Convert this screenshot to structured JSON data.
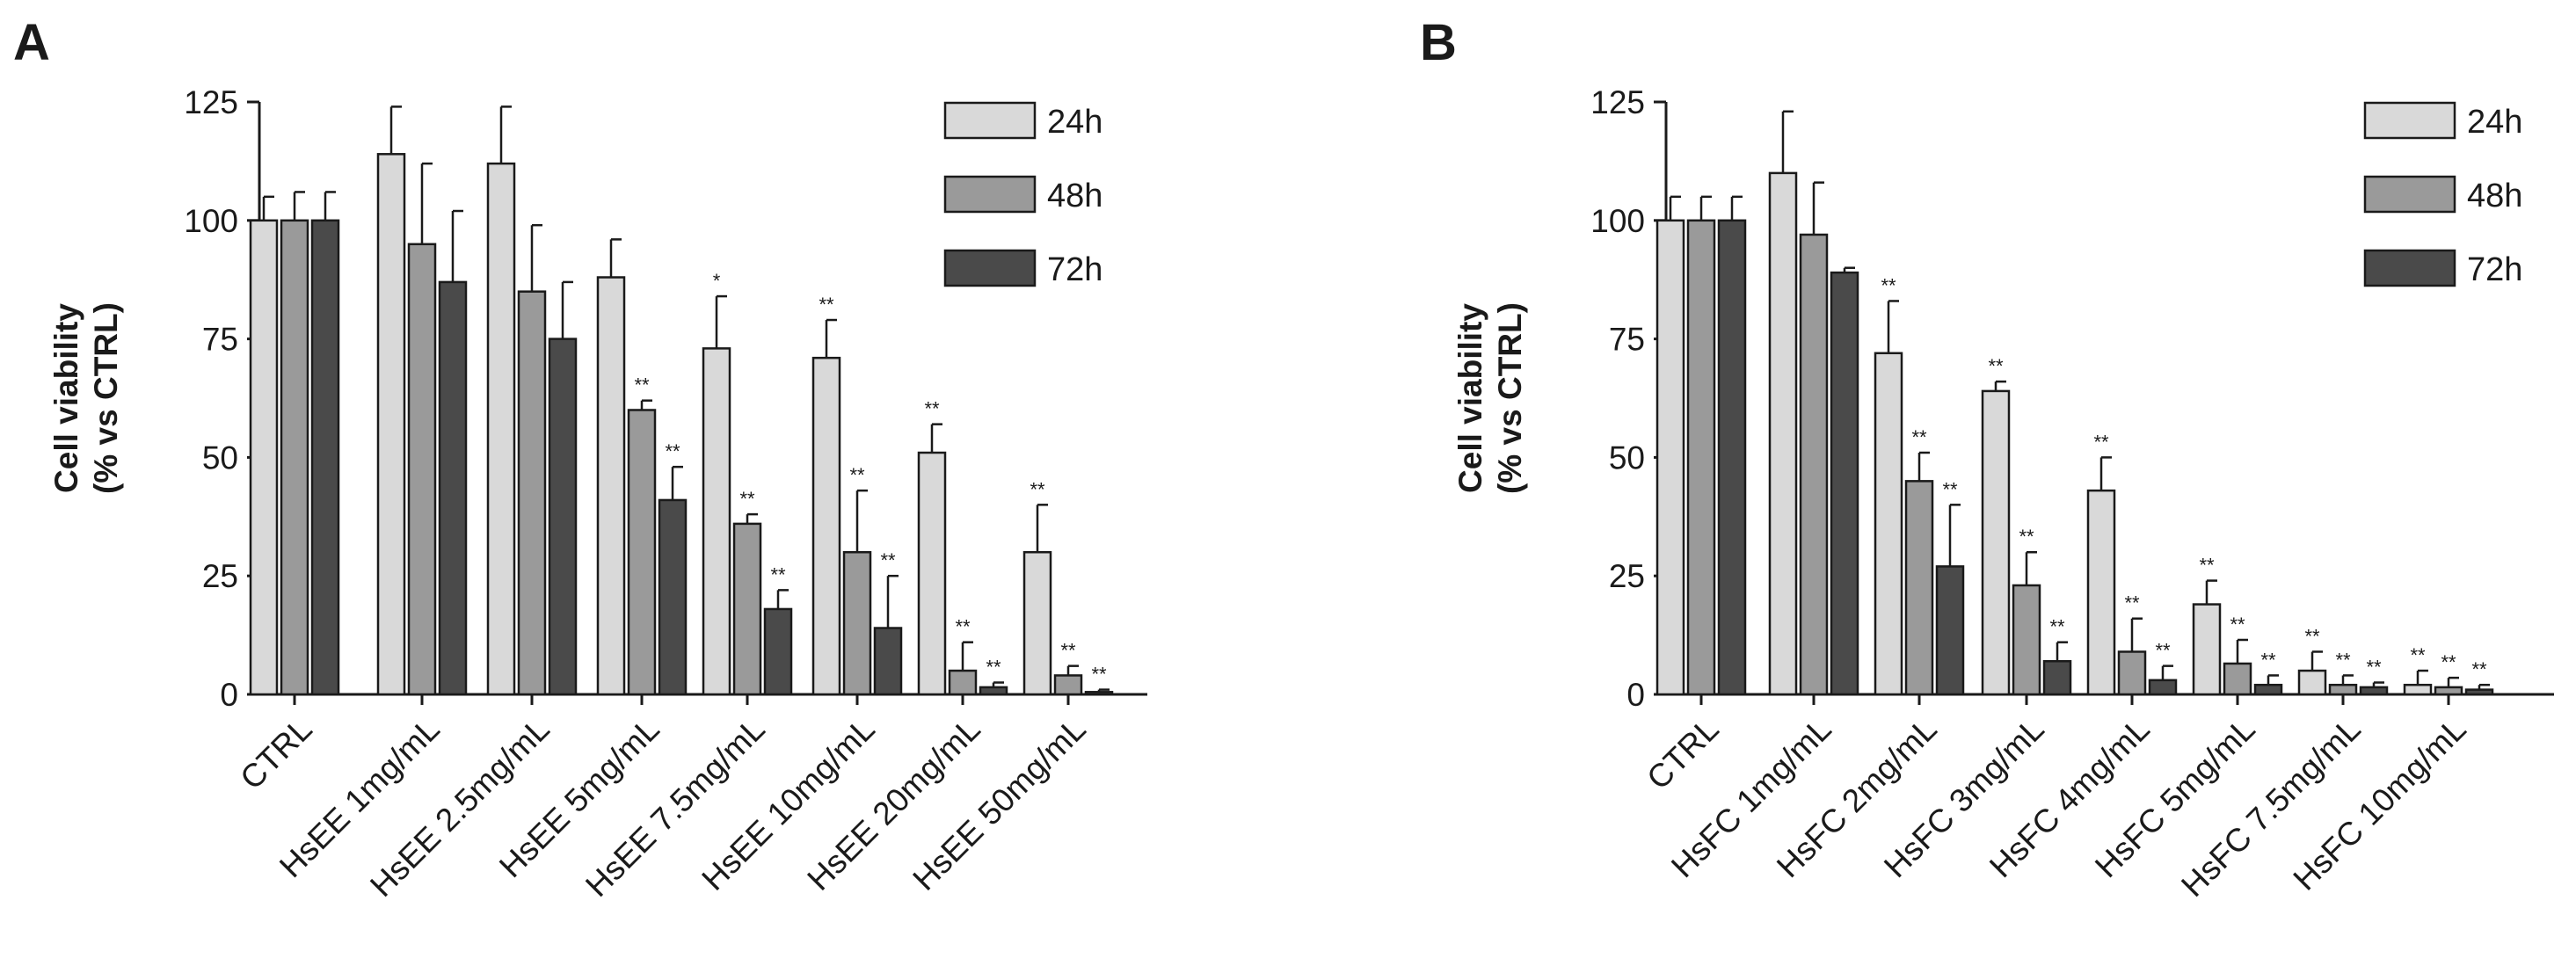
{
  "figure": {
    "panels": [
      "A",
      "B"
    ]
  },
  "chart_data": [
    {
      "panel": "A",
      "type": "bar",
      "title": "",
      "xlabel": "",
      "ylabel": "Cell viability\n(% vs CTRL)",
      "ylabel_lines": [
        "Cell viability",
        "(% vs CTRL)"
      ],
      "ylim": [
        0,
        125
      ],
      "yticks": [
        0,
        25,
        50,
        75,
        100,
        125
      ],
      "legend_position": "top-right",
      "categories": [
        "CTRL",
        "HsEE 1mg/mL",
        "HsEE 2.5mg/mL",
        "HsEE 5mg/mL",
        "HsEE 7.5mg/mL",
        "HsEE 10mg/mL",
        "HsEE 20mg/mL",
        "HsEE 50mg/mL"
      ],
      "series": [
        {
          "name": "24h",
          "color": "#d9d9d9",
          "values": [
            100,
            114,
            112,
            88,
            73,
            71,
            51,
            30
          ],
          "errors": [
            5,
            10,
            12,
            8,
            11,
            8,
            6,
            10
          ],
          "significance": [
            "",
            "",
            "",
            "",
            "*",
            "**",
            "**",
            "**"
          ]
        },
        {
          "name": "48h",
          "color": "#9a9a9a",
          "values": [
            100,
            95,
            85,
            60,
            36,
            30,
            5,
            4
          ],
          "errors": [
            6,
            17,
            14,
            2,
            2,
            13,
            6,
            2
          ],
          "significance": [
            "",
            "",
            "",
            "**",
            "**",
            "**",
            "**",
            "**"
          ]
        },
        {
          "name": "72h",
          "color": "#4a4a4a",
          "values": [
            100,
            87,
            75,
            41,
            18,
            14,
            1.5,
            0.5
          ],
          "errors": [
            6,
            15,
            12,
            7,
            4,
            11,
            1,
            0.5
          ],
          "significance": [
            "",
            "",
            "",
            "**",
            "**",
            "**",
            "**",
            "**"
          ]
        }
      ]
    },
    {
      "panel": "B",
      "type": "bar",
      "title": "",
      "xlabel": "",
      "ylabel": "Cell viability\n(% vs CTRL)",
      "ylabel_lines": [
        "Cell viability",
        "(% vs CTRL)"
      ],
      "ylim": [
        0,
        125
      ],
      "yticks": [
        0,
        25,
        50,
        75,
        100,
        125
      ],
      "legend_position": "top-right",
      "categories": [
        "CTRL",
        "HsFC 1mg/mL",
        "HsFC 2mg/mL",
        "HsFC 3mg/mL",
        "HsFC 4mg/mL",
        "HsFC 5mg/mL",
        "HsFC 7.5mg/mL",
        "HsFC 10mg/mL"
      ],
      "series": [
        {
          "name": "24h",
          "color": "#d9d9d9",
          "values": [
            100,
            110,
            72,
            64,
            43,
            19,
            5,
            2
          ],
          "errors": [
            5,
            13,
            11,
            2,
            7,
            5,
            4,
            3
          ],
          "significance": [
            "",
            "",
            "**",
            "**",
            "**",
            "**",
            "**",
            "**"
          ]
        },
        {
          "name": "48h",
          "color": "#9a9a9a",
          "values": [
            100,
            97,
            45,
            23,
            9,
            6.5,
            2,
            1.5
          ],
          "errors": [
            5,
            11,
            6,
            7,
            7,
            5,
            2,
            2
          ],
          "significance": [
            "",
            "",
            "**",
            "**",
            "**",
            "**",
            "**",
            "**"
          ]
        },
        {
          "name": "72h",
          "color": "#4a4a4a",
          "values": [
            100,
            89,
            27,
            7,
            3,
            2,
            1.5,
            1
          ],
          "errors": [
            5,
            1,
            13,
            4,
            3,
            2,
            1,
            1
          ],
          "significance": [
            "",
            "",
            "**",
            "**",
            "**",
            "**",
            "**",
            "**"
          ]
        }
      ]
    }
  ]
}
